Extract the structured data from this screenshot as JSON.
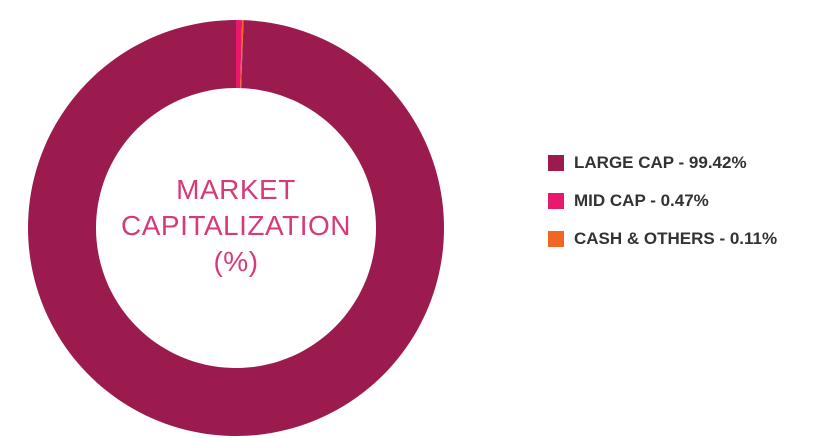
{
  "chart_data": {
    "type": "pie",
    "title_lines": [
      "MARKET",
      "CAPITALIZATION",
      "(%)"
    ],
    "legend_position": "right",
    "slices": [
      {
        "label": "LARGE CAP - 99.42%",
        "value": 99.42,
        "color": "#9b1b4f"
      },
      {
        "label": "MID CAP - 0.47%",
        "value": 0.47,
        "color": "#e8186d"
      },
      {
        "label": "CASH & OTHERS - 0.11%",
        "value": 0.11,
        "color": "#f26522"
      }
    ]
  }
}
